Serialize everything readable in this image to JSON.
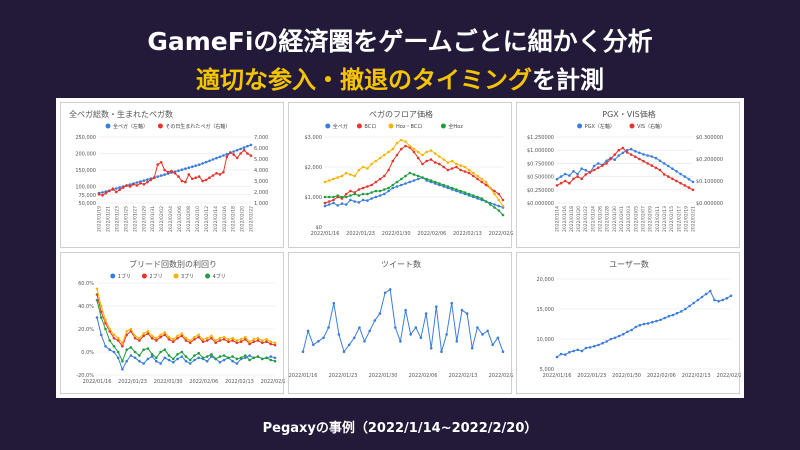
{
  "slide": {
    "headline": "GameFiの経済圏をゲームごとに細かく分析",
    "subheadline_highlight": "適切な参入・撤退のタイミング",
    "subheadline_rest": "を計測",
    "caption": "Pegaxyの事例（2022/1/14~2022/2/20）"
  },
  "colors": {
    "background": "#221a38",
    "highlight": "#f5c400",
    "blue": "#3b7ddd",
    "red": "#e8322b",
    "orange": "#f5b400",
    "green": "#1e9e3c"
  },
  "chart_data": [
    {
      "id": "pegas",
      "type": "line",
      "title": "全ペガ総数・生まれたペガ数",
      "x_ticks": [
        "2022/01/19",
        "2022/01/21",
        "2022/01/23",
        "2022/01/25",
        "2022/01/27",
        "2022/01/29",
        "2022/01/31",
        "2022/02/02",
        "2022/02/04",
        "2022/02/06",
        "2022/02/08",
        "2022/02/10",
        "2022/02/12",
        "2022/02/14",
        "2022/02/16",
        "2022/02/18",
        "2022/02/20",
        "2022/02/22"
      ],
      "y_left": {
        "ticks": [
          "50,000",
          "75,000",
          "100,000",
          "150,000",
          "200,000",
          "250,000"
        ],
        "values": [
          50000,
          75000,
          100000,
          150000,
          200000,
          250000
        ],
        "lim": [
          50000,
          250000
        ]
      },
      "y_right": {
        "ticks": [
          "1,000",
          "2,000",
          "3,000",
          "4,000",
          "5,000",
          "6,000",
          "7,000"
        ],
        "values": [
          1000,
          2000,
          3000,
          4000,
          5000,
          6000,
          7000
        ],
        "lim": [
          1000,
          7000
        ]
      },
      "series": [
        {
          "name": "全ペガ（左軸）",
          "color": "#3b7ddd",
          "axis": "left",
          "values": [
            80000,
            82000,
            85000,
            88000,
            91000,
            94000,
            97000,
            100000,
            103000,
            106000,
            109000,
            112000,
            115000,
            118000,
            121000,
            124000,
            127000,
            130000,
            133000,
            136000,
            139000,
            142000,
            145000,
            148000,
            151000,
            154000,
            157000,
            160000,
            163000,
            166000,
            170000,
            174000,
            178000,
            182000,
            186000,
            190000,
            194000,
            198000,
            202000,
            206000,
            210000,
            214000,
            218000,
            222000,
            226000
          ]
        },
        {
          "name": "その日生まれたペガ（右軸）",
          "color": "#e8322b",
          "axis": "right",
          "values": [
            1800,
            1700,
            1900,
            2100,
            2300,
            2000,
            2200,
            2400,
            2600,
            2500,
            2700,
            2600,
            2800,
            2700,
            2900,
            3100,
            3300,
            4500,
            4700,
            4000,
            3800,
            3900,
            3700,
            3400,
            3000,
            2900,
            3600,
            3200,
            3300,
            3400,
            3000,
            3100,
            3300,
            3500,
            3700,
            3600,
            3800,
            5200,
            5600,
            5400,
            5100,
            5500,
            5800,
            5500,
            5300
          ]
        }
      ]
    },
    {
      "id": "floor",
      "type": "line",
      "title": "ペガのフロア価格",
      "x_ticks": [
        "2022/01/16",
        "2022/01/23",
        "2022/01/30",
        "2022/02/06",
        "2022/02/13",
        "2022/02/20"
      ],
      "y_left": {
        "ticks": [
          "$0",
          "$1,000",
          "$2,000",
          "$3,000"
        ],
        "values": [
          0,
          1000,
          2000,
          3000
        ],
        "lim": [
          0,
          3000
        ]
      },
      "series": [
        {
          "name": "全ペガ",
          "color": "#3b7ddd",
          "values": [
            700,
            750,
            800,
            720,
            780,
            750,
            900,
            850,
            820,
            900,
            880,
            950,
            1000,
            1050,
            1100,
            1200,
            1300,
            1350,
            1400,
            1450,
            1500,
            1550,
            1600,
            1650,
            1550,
            1500,
            1450,
            1400,
            1350,
            1300,
            1250,
            1200,
            1150,
            1100,
            1050,
            1000,
            950,
            900,
            850,
            800,
            750,
            700,
            650
          ]
        },
        {
          "name": "BCロ",
          "color": "#e8322b",
          "values": [
            800,
            850,
            900,
            1000,
            950,
            1100,
            1200,
            1150,
            1250,
            1300,
            1350,
            1400,
            1500,
            1600,
            1700,
            1900,
            2200,
            2400,
            2600,
            2700,
            2650,
            2500,
            2300,
            2100,
            2200,
            2250,
            2150,
            2100,
            2000,
            1900,
            1950,
            2000,
            1900,
            1850,
            1800,
            1700,
            1600,
            1500,
            1400,
            1300,
            1200,
            1100,
            900
          ]
        },
        {
          "name": "Hoz・BCロ",
          "color": "#f5b400",
          "values": [
            1500,
            1550,
            1600,
            1650,
            1700,
            1800,
            1750,
            1700,
            1900,
            2000,
            1950,
            2100,
            2200,
            2300,
            2400,
            2500,
            2600,
            2800,
            2900,
            2850,
            2700,
            2600,
            2500,
            2400,
            2500,
            2550,
            2450,
            2350,
            2250,
            2150,
            2200,
            2100,
            2050,
            2000,
            1900,
            1800,
            1700,
            1600,
            1500,
            1300,
            1100,
            900,
            700
          ]
        },
        {
          "name": "全Hoz",
          "color": "#1e9e3c",
          "values": [
            1000,
            1000,
            1000,
            1050,
            1000,
            1000,
            1050,
            1100,
            1050,
            1100,
            1100,
            1150,
            1200,
            1200,
            1250,
            1300,
            1400,
            1500,
            1600,
            1700,
            1800,
            1750,
            1700,
            1650,
            1600,
            1550,
            1500,
            1450,
            1400,
            1350,
            1300,
            1250,
            1200,
            1150,
            1100,
            1050,
            1000,
            950,
            850,
            750,
            650,
            550,
            400
          ]
        }
      ]
    },
    {
      "id": "price",
      "type": "line",
      "title": "PGX・VIS価格",
      "x_ticks": [
        "2022/01/14",
        "2022/01/16",
        "2022/01/18",
        "2022/01/20",
        "2022/01/22",
        "2022/01/24",
        "2022/01/26",
        "2022/01/28",
        "2022/01/30",
        "2022/02/01",
        "2022/02/03",
        "2022/02/05",
        "2022/02/07",
        "2022/02/09",
        "2022/02/11",
        "2022/02/13",
        "2022/02/15",
        "2022/02/17",
        "2022/02/19",
        "2022/02/21"
      ],
      "y_left": {
        "ticks": [
          "$0.000000",
          "$0.250000",
          "$0.500000",
          "$0.750000",
          "$1.000000",
          "$1.250000"
        ],
        "values": [
          0,
          0.25,
          0.5,
          0.75,
          1.0,
          1.25
        ],
        "lim": [
          0,
          1.25
        ]
      },
      "y_right": {
        "ticks": [
          "$0.000000",
          "$0.100000",
          "$0.200000",
          "$0.300000"
        ],
        "values": [
          0,
          0.1,
          0.2,
          0.3
        ],
        "lim": [
          0,
          0.3
        ]
      },
      "series": [
        {
          "name": "PGX（左軸）",
          "color": "#3b7ddd",
          "axis": "left",
          "values": [
            0.45,
            0.5,
            0.55,
            0.52,
            0.6,
            0.55,
            0.65,
            0.62,
            0.58,
            0.7,
            0.75,
            0.72,
            0.8,
            0.85,
            0.82,
            0.9,
            0.95,
            1.0,
            1.02,
            0.98,
            0.95,
            0.92,
            0.9,
            0.88,
            0.85,
            0.8,
            0.75,
            0.7,
            0.65,
            0.6,
            0.55,
            0.5,
            0.45,
            0.4
          ]
        },
        {
          "name": "VIS（右軸）",
          "color": "#e8322b",
          "axis": "right",
          "values": [
            0.08,
            0.09,
            0.1,
            0.09,
            0.11,
            0.12,
            0.11,
            0.13,
            0.14,
            0.15,
            0.16,
            0.17,
            0.18,
            0.2,
            0.22,
            0.24,
            0.25,
            0.23,
            0.22,
            0.21,
            0.2,
            0.19,
            0.18,
            0.17,
            0.16,
            0.15,
            0.13,
            0.12,
            0.11,
            0.1,
            0.09,
            0.08,
            0.07,
            0.06
          ]
        }
      ]
    },
    {
      "id": "breed",
      "type": "line",
      "title": "ブリード回数別の利回り",
      "x_ticks": [
        "2022/01/16",
        "2022/01/23",
        "2022/01/30",
        "2022/02/06",
        "2022/02/13",
        "2022/02/20"
      ],
      "y_left": {
        "ticks": [
          "-20.0%",
          "0.0%",
          "20.0%",
          "40.0%",
          "60.0%"
        ],
        "values": [
          -20,
          0,
          20,
          40,
          60
        ],
        "lim": [
          -20,
          60
        ]
      },
      "series": [
        {
          "name": "1ブリ",
          "color": "#3b7ddd",
          "values": [
            30,
            15,
            5,
            2,
            0,
            -5,
            -15,
            -8,
            -3,
            -5,
            -8,
            -10,
            -6,
            -4,
            -8,
            -10,
            -5,
            -7,
            -9,
            -6,
            -4,
            -8,
            -10,
            -7,
            -5,
            -6,
            -8,
            -4,
            -6,
            -9,
            -7,
            -5,
            -8,
            -10,
            -6,
            -5,
            -3,
            -5,
            -4,
            -6,
            -5,
            -4,
            -5
          ]
        },
        {
          "name": "2ブリ",
          "color": "#e8322b",
          "values": [
            50,
            35,
            25,
            18,
            12,
            10,
            5,
            15,
            18,
            12,
            10,
            14,
            16,
            12,
            10,
            13,
            15,
            11,
            9,
            12,
            14,
            10,
            8,
            11,
            13,
            9,
            10,
            12,
            8,
            10,
            11,
            9,
            10,
            8,
            9,
            11,
            7,
            9,
            10,
            8,
            9,
            7,
            6
          ]
        },
        {
          "name": "3ブリ",
          "color": "#f5b400",
          "values": [
            55,
            40,
            28,
            20,
            15,
            12,
            8,
            18,
            20,
            14,
            12,
            16,
            18,
            14,
            12,
            15,
            17,
            13,
            11,
            14,
            16,
            12,
            10,
            13,
            15,
            11,
            12,
            14,
            10,
            12,
            13,
            11,
            12,
            10,
            11,
            13,
            9,
            11,
            12,
            10,
            11,
            9,
            8
          ]
        },
        {
          "name": "4ブリ",
          "color": "#1e9e3c",
          "values": [
            45,
            30,
            20,
            10,
            5,
            0,
            -8,
            2,
            4,
            0,
            -3,
            2,
            3,
            -2,
            -5,
            0,
            2,
            -3,
            -6,
            -2,
            0,
            -4,
            -7,
            -3,
            -1,
            -5,
            -4,
            -2,
            -6,
            -4,
            -3,
            -5,
            -4,
            -6,
            -5,
            -3,
            -7,
            -5,
            -4,
            -6,
            -5,
            -7,
            -8
          ]
        }
      ]
    },
    {
      "id": "tweets",
      "type": "line",
      "title": "ツイート数",
      "x_ticks": [
        "2022/01/16",
        "2022/01/23",
        "2022/01/30",
        "2022/02/06",
        "2022/02/13",
        "2022/02/20"
      ],
      "y_left": {
        "ticks": [],
        "values": [],
        "lim": [
          40,
          170
        ]
      },
      "series": [
        {
          "name": "",
          "color": "#3b7ddd",
          "values": [
            65,
            95,
            75,
            80,
            85,
            100,
            135,
            90,
            65,
            75,
            85,
            100,
            80,
            95,
            110,
            120,
            150,
            155,
            100,
            80,
            125,
            90,
            100,
            85,
            120,
            70,
            130,
            65,
            90,
            135,
            80,
            125,
            120,
            70,
            100,
            90,
            95,
            75,
            85,
            65
          ]
        }
      ]
    },
    {
      "id": "users",
      "type": "line",
      "title": "ユーザー数",
      "x_ticks": [
        "2022/01/16",
        "2022/01/23",
        "2022/01/30",
        "2022/02/06",
        "2022/02/13",
        "2022/02/20"
      ],
      "y_left": {
        "ticks": [
          "5,000",
          "10,000",
          "15,000",
          "20,000"
        ],
        "values": [
          5000,
          10000,
          15000,
          20000
        ],
        "lim": [
          5000,
          20000
        ]
      },
      "series": [
        {
          "name": "",
          "color": "#3b7ddd",
          "values": [
            7000,
            7500,
            7400,
            7800,
            8000,
            8200,
            8000,
            8500,
            8600,
            8800,
            9000,
            9300,
            9600,
            10000,
            10200,
            10500,
            10800,
            11200,
            11500,
            12000,
            12300,
            12500,
            12600,
            12800,
            13000,
            13200,
            13500,
            13800,
            14000,
            14300,
            14600,
            15000,
            15500,
            16000,
            16500,
            17000,
            17500,
            18000,
            16500,
            16300,
            16500,
            16800,
            17200
          ]
        }
      ]
    }
  ]
}
